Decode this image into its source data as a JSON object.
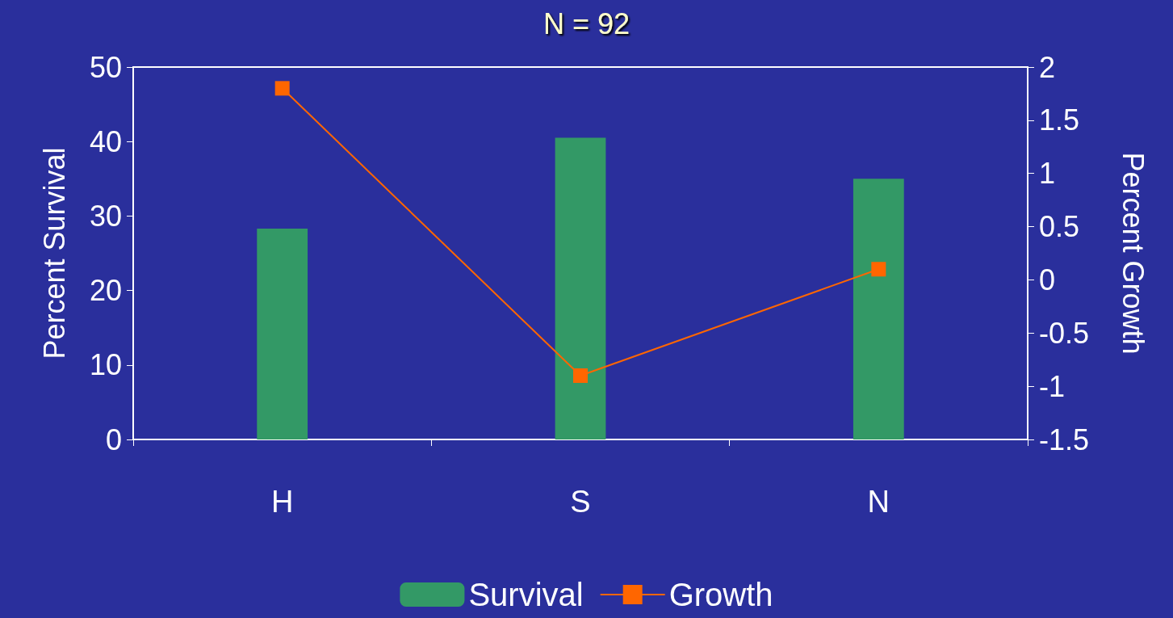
{
  "chart_data": {
    "type": "bar",
    "title": "N = 92",
    "ylabel": "Percent Survival",
    "y2label": "Percent Growth",
    "categories": [
      "H",
      "S",
      "N"
    ],
    "series": [
      {
        "name": "Survival",
        "color": "#339966",
        "values": [
          28.3,
          40.5,
          35.0
        ]
      },
      {
        "name": "Growth",
        "type": "line",
        "axis": "y2",
        "color": "#ff6600",
        "values": [
          1.8,
          -0.9,
          0.1
        ]
      }
    ],
    "ylim": [
      0,
      50
    ],
    "yticks": [
      0,
      10,
      20,
      30,
      40,
      50
    ],
    "y2lim": [
      -1.5,
      2
    ],
    "y2ticks": [
      -1.5,
      -1,
      -0.5,
      0,
      0.5,
      1,
      1.5,
      2
    ],
    "grid": false,
    "legend": "bottom",
    "marker": "square",
    "line_style": "solid"
  }
}
